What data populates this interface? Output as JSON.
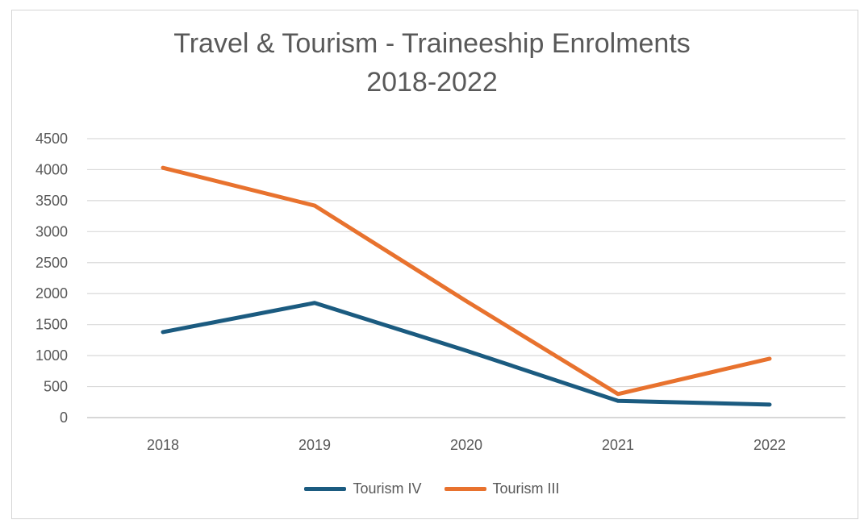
{
  "chart_data": {
    "type": "line",
    "title": [
      "Travel & Tourism - Traineeship Enrolments",
      "2018-2022"
    ],
    "categories": [
      "2018",
      "2019",
      "2020",
      "2021",
      "2022"
    ],
    "ylim": [
      0,
      4500
    ],
    "yticks": [
      0,
      500,
      1000,
      1500,
      2000,
      2500,
      3000,
      3500,
      4000,
      4500
    ],
    "grid": true,
    "legend_position": "bottom",
    "series": [
      {
        "name": "Tourism IV",
        "color": "#1b5b80",
        "values": [
          1380,
          1850,
          1080,
          270,
          210
        ]
      },
      {
        "name": "Tourism III",
        "color": "#e8722e",
        "values": [
          4030,
          3420,
          1880,
          380,
          950
        ]
      }
    ]
  }
}
